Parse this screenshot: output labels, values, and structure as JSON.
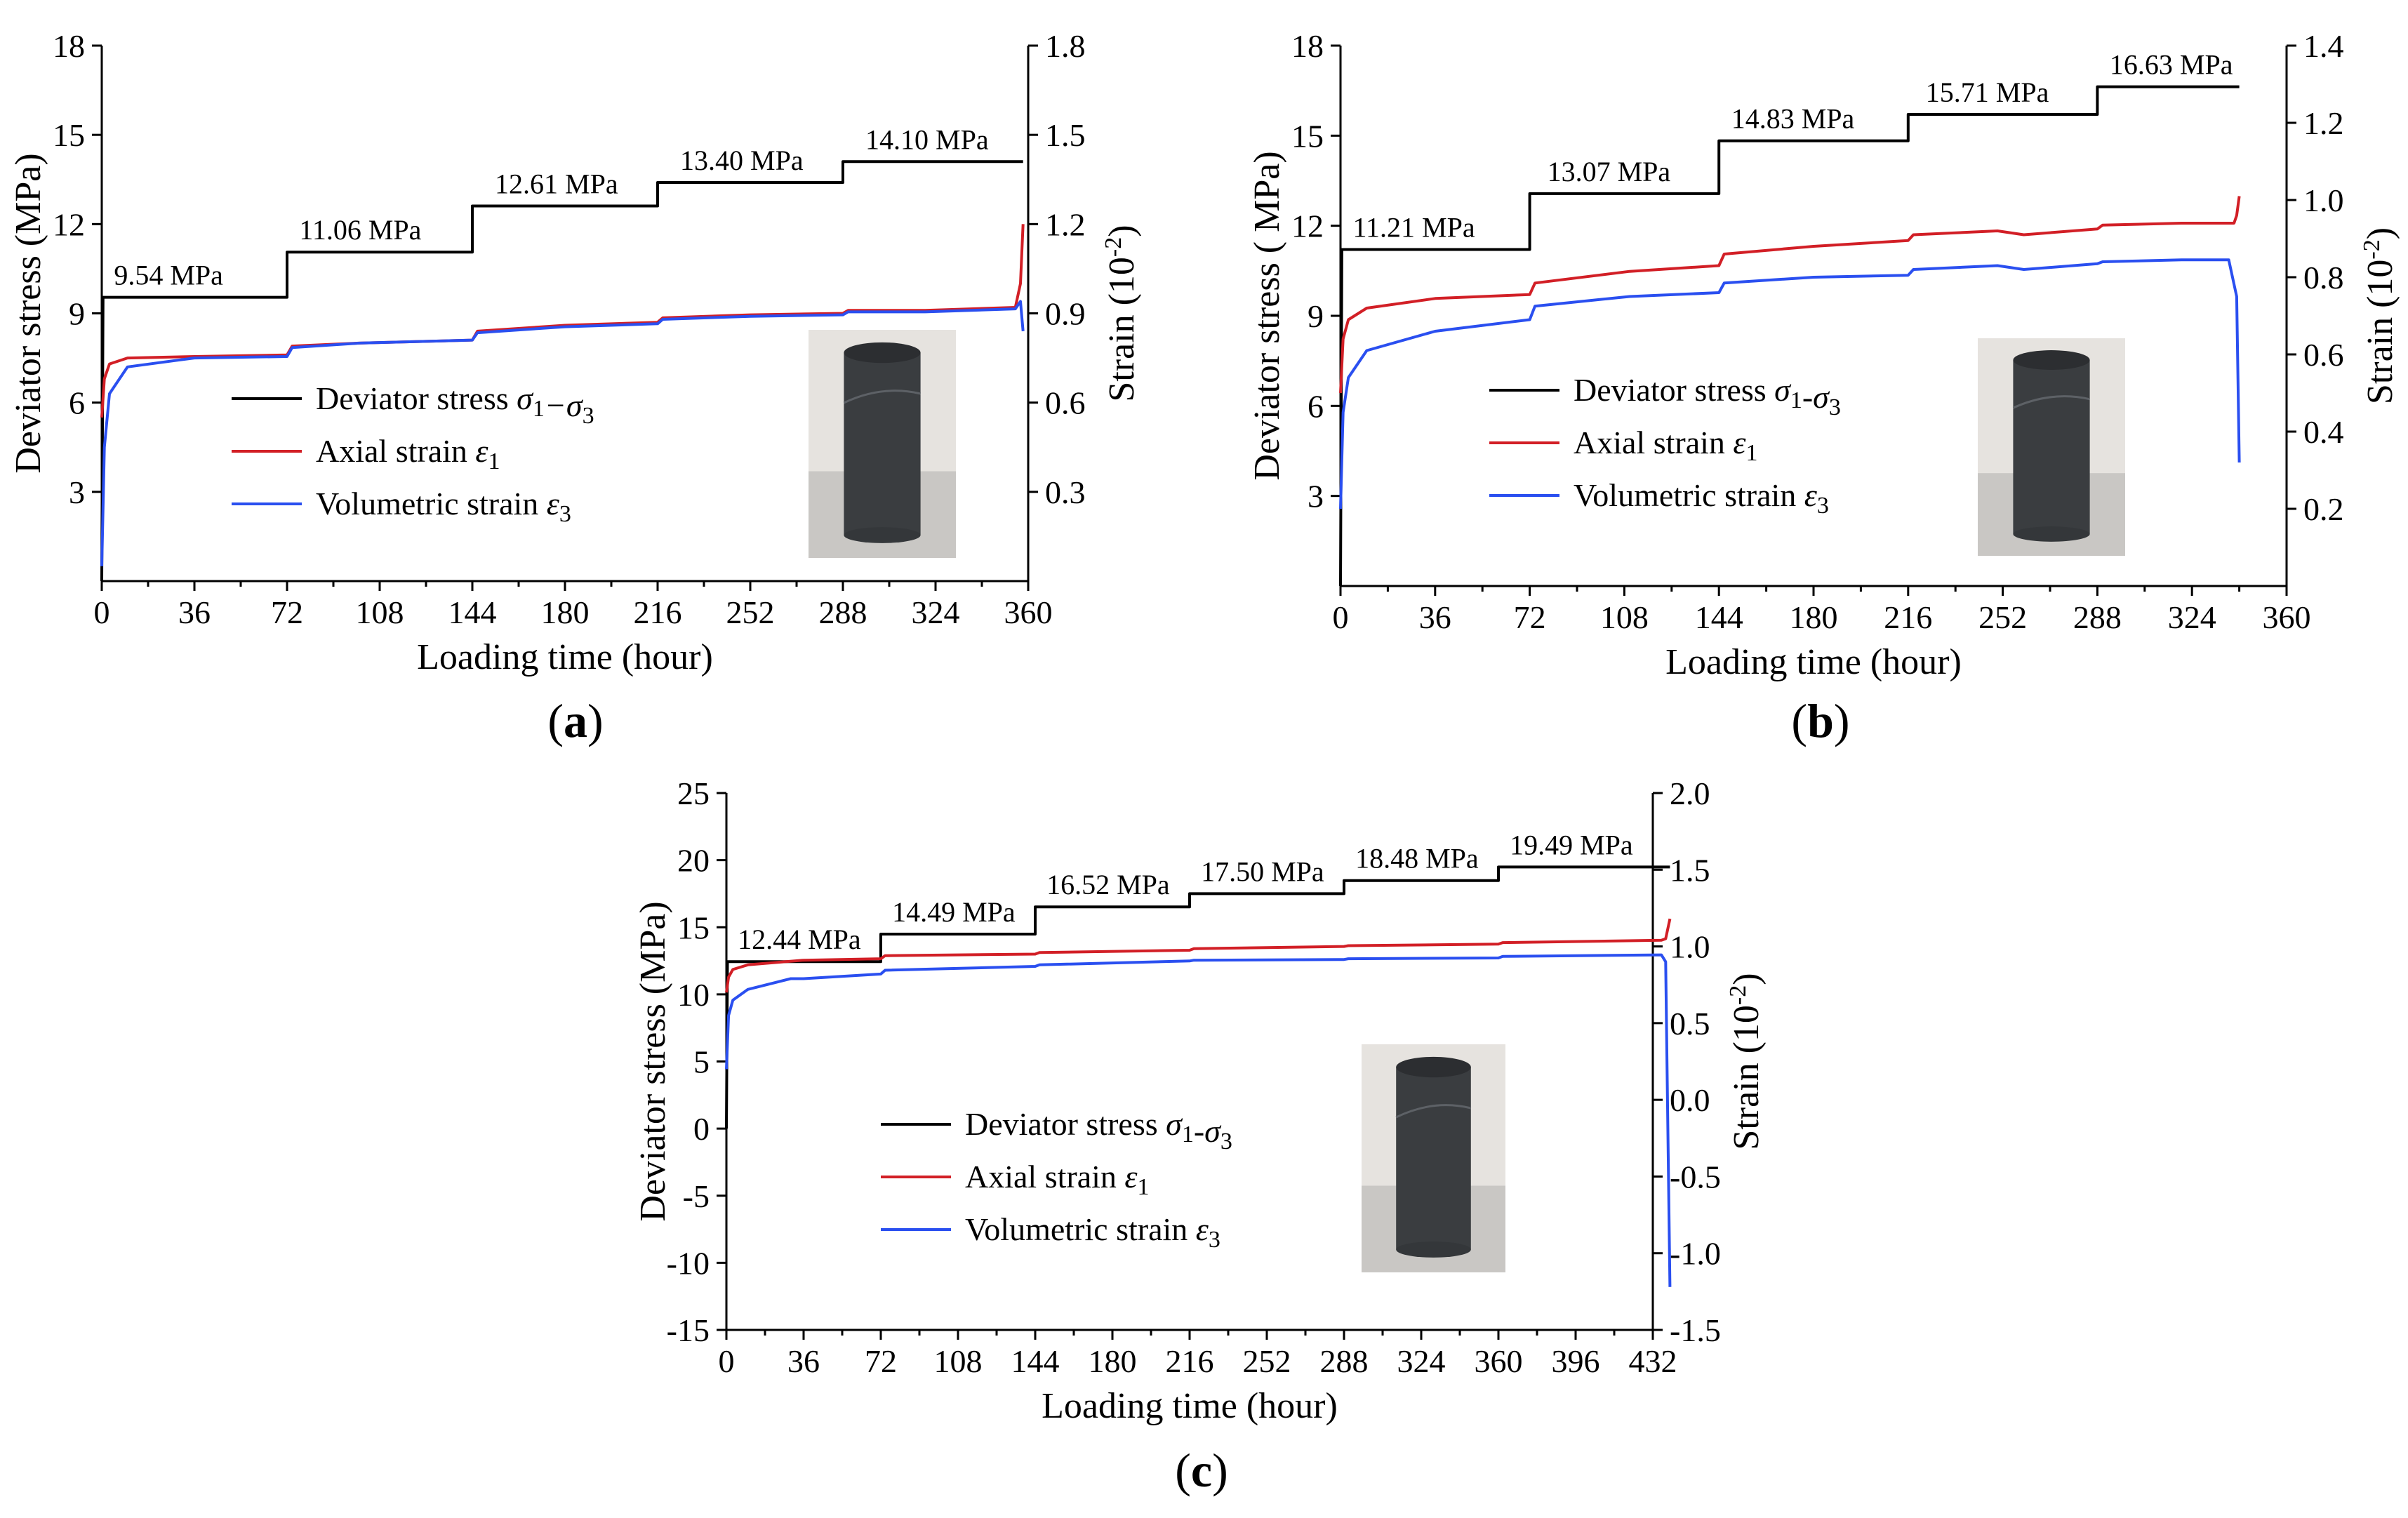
{
  "colors": {
    "stress": "#000000",
    "axial": "#d21f26",
    "volumetric": "#2a4ff0"
  },
  "chart_data": [
    {
      "panel_label": "(a)",
      "type": "line",
      "xlabel": "Loading time (hour)",
      "ylabel": "Deviator stress (MPa)",
      "y2label": "Strain (10-2)",
      "xlim": [
        0,
        360
      ],
      "ylim": [
        0,
        18
      ],
      "y2lim": [
        0,
        1.8
      ],
      "xticks": [
        "0",
        "36",
        "72",
        "108",
        "144",
        "180",
        "216",
        "252",
        "288",
        "324",
        "360"
      ],
      "yticks": [
        "3",
        "6",
        "9",
        "12",
        "15",
        "18"
      ],
      "y2ticks": [
        "0.3",
        "0.6",
        "0.9",
        "1.2",
        "1.5",
        "1.8"
      ],
      "legend": [
        {
          "symbol": "Deviator stress ",
          "math": "σ1−σ3"
        },
        {
          "symbol": "Axial strain ",
          "math": "ε1"
        },
        {
          "symbol": "Volumetric strain ",
          "math": "ε3"
        }
      ],
      "annotations": [
        "9.54 MPa",
        "11.06 MPa",
        "12.61 MPa",
        "13.40 MPa",
        "14.10 MPa"
      ],
      "series": [
        {
          "name": "Deviator stress σ1−σ3",
          "axis": "left",
          "x": [
            0,
            0.5,
            72,
            72,
            144,
            144,
            216,
            216,
            288,
            288,
            358
          ],
          "y": [
            0,
            9.54,
            9.54,
            11.06,
            11.06,
            12.61,
            12.61,
            13.4,
            13.4,
            14.1,
            14.1
          ]
        },
        {
          "name": "Axial strain ε1",
          "axis": "right",
          "x": [
            0,
            1,
            3,
            10,
            36,
            72,
            74,
            100,
            144,
            146,
            180,
            216,
            218,
            252,
            288,
            290,
            320,
            355,
            357,
            358
          ],
          "y": [
            0.55,
            0.68,
            0.73,
            0.75,
            0.755,
            0.76,
            0.79,
            0.8,
            0.81,
            0.84,
            0.86,
            0.87,
            0.885,
            0.895,
            0.9,
            0.91,
            0.91,
            0.92,
            1.0,
            1.2
          ]
        },
        {
          "name": "Volumetric strain ε3",
          "axis": "right",
          "x": [
            0,
            1,
            3,
            10,
            36,
            72,
            74,
            100,
            144,
            146,
            180,
            216,
            218,
            252,
            288,
            290,
            320,
            355,
            357,
            358
          ],
          "y": [
            0.05,
            0.45,
            0.63,
            0.72,
            0.75,
            0.755,
            0.785,
            0.8,
            0.81,
            0.835,
            0.855,
            0.865,
            0.88,
            0.89,
            0.895,
            0.905,
            0.905,
            0.915,
            0.94,
            0.84
          ]
        }
      ]
    },
    {
      "panel_label": "(b)",
      "type": "line",
      "xlabel": "Loading time (hour)",
      "ylabel": "Deviator stress ( MPa)",
      "y2label": "Strain (10-2)",
      "xlim": [
        0,
        360
      ],
      "ylim": [
        0,
        18
      ],
      "y2lim": [
        0,
        1.4
      ],
      "xticks": [
        "0",
        "36",
        "72",
        "108",
        "144",
        "180",
        "216",
        "252",
        "288",
        "324",
        "360"
      ],
      "yticks": [
        "3",
        "6",
        "9",
        "12",
        "15",
        "18"
      ],
      "y2ticks": [
        "0.2",
        "0.4",
        "0.6",
        "0.8",
        "1.0",
        "1.2",
        "1.4"
      ],
      "legend": [
        {
          "symbol": "Deviator stress ",
          "math": "σ1-σ3"
        },
        {
          "symbol": "Axial strain ",
          "math": "ε1"
        },
        {
          "symbol": "Volumetric strain ",
          "math": "ε3"
        }
      ],
      "annotations": [
        "11.21 MPa",
        "13.07 MPa",
        "14.83 MPa",
        "15.71 MPa",
        "16.63 MPa"
      ],
      "series": [
        {
          "name": "Deviator stress σ1-σ3",
          "axis": "left",
          "x": [
            0,
            0.5,
            72,
            72,
            144,
            144,
            216,
            216,
            288,
            288,
            342
          ],
          "y": [
            0,
            11.21,
            11.21,
            13.07,
            13.07,
            14.83,
            14.83,
            15.71,
            15.71,
            16.63,
            16.63
          ]
        },
        {
          "name": "Axial strain ε1",
          "axis": "right",
          "x": [
            0,
            1,
            3,
            10,
            36,
            72,
            74,
            110,
            144,
            146,
            180,
            216,
            218,
            250,
            260,
            288,
            290,
            320,
            340,
            341,
            342
          ],
          "y": [
            0.5,
            0.64,
            0.69,
            0.72,
            0.745,
            0.755,
            0.785,
            0.815,
            0.83,
            0.86,
            0.88,
            0.895,
            0.91,
            0.92,
            0.91,
            0.925,
            0.935,
            0.94,
            0.94,
            0.96,
            1.01
          ]
        },
        {
          "name": "Volumetric strain ε3",
          "axis": "right",
          "x": [
            0,
            1,
            3,
            10,
            36,
            72,
            74,
            110,
            144,
            146,
            180,
            216,
            218,
            250,
            260,
            288,
            290,
            320,
            338,
            341,
            342
          ],
          "y": [
            0.2,
            0.45,
            0.54,
            0.61,
            0.66,
            0.69,
            0.725,
            0.75,
            0.76,
            0.785,
            0.8,
            0.805,
            0.82,
            0.83,
            0.82,
            0.835,
            0.84,
            0.845,
            0.845,
            0.75,
            0.32
          ]
        }
      ]
    },
    {
      "panel_label": "(c)",
      "type": "line",
      "xlabel": "Loading time (hour)",
      "ylabel": "Deviator stress (MPa)",
      "y2label": "Strain (10-2)",
      "xlim": [
        0,
        432
      ],
      "ylim": [
        -15,
        25
      ],
      "y2lim": [
        -1.5,
        2.0
      ],
      "xticks": [
        "0",
        "36",
        "72",
        "108",
        "144",
        "180",
        "216",
        "252",
        "288",
        "324",
        "360",
        "396",
        "432"
      ],
      "yticks": [
        "-15",
        "-10",
        "-5",
        "0",
        "5",
        "10",
        "15",
        "20",
        "25"
      ],
      "y2ticks": [
        "-1.5",
        "-1.0",
        "-0.5",
        "0.0",
        "0.5",
        "1.0",
        "1.5",
        "2.0"
      ],
      "legend": [
        {
          "symbol": "Deviator stress ",
          "math": "σ1-σ3"
        },
        {
          "symbol": "Axial strain ",
          "math": "ε1"
        },
        {
          "symbol": "Volumetric strain ",
          "math": "ε3"
        }
      ],
      "annotations": [
        "12.44 MPa",
        "14.49 MPa",
        "16.52 MPa",
        "17.50 MPa",
        "18.48 MPa",
        "19.49 MPa"
      ],
      "series": [
        {
          "name": "Deviator stress σ1-σ3",
          "axis": "left",
          "x": [
            0,
            0.5,
            72,
            72,
            144,
            144,
            216,
            216,
            288,
            288,
            360,
            360,
            440
          ],
          "y": [
            0,
            12.44,
            12.44,
            14.49,
            14.49,
            16.52,
            16.52,
            17.5,
            17.5,
            18.48,
            18.48,
            19.49,
            19.49
          ]
        },
        {
          "name": "Axial strain ε1",
          "axis": "right",
          "x": [
            0,
            1,
            3,
            10,
            36,
            72,
            74,
            144,
            146,
            216,
            218,
            288,
            290,
            360,
            362,
            436,
            438,
            440
          ],
          "y": [
            0.7,
            0.8,
            0.85,
            0.88,
            0.91,
            0.92,
            0.94,
            0.95,
            0.96,
            0.975,
            0.985,
            1.0,
            1.005,
            1.015,
            1.025,
            1.04,
            1.05,
            1.18
          ]
        },
        {
          "name": "Volumetric strain ε3",
          "axis": "right",
          "x": [
            0,
            1,
            3,
            10,
            30,
            36,
            72,
            74,
            144,
            146,
            216,
            218,
            288,
            290,
            360,
            362,
            436,
            438,
            440
          ],
          "y": [
            0.2,
            0.55,
            0.65,
            0.72,
            0.79,
            0.79,
            0.82,
            0.845,
            0.87,
            0.88,
            0.905,
            0.91,
            0.915,
            0.92,
            0.925,
            0.935,
            0.945,
            0.9,
            -1.22
          ]
        }
      ]
    }
  ]
}
